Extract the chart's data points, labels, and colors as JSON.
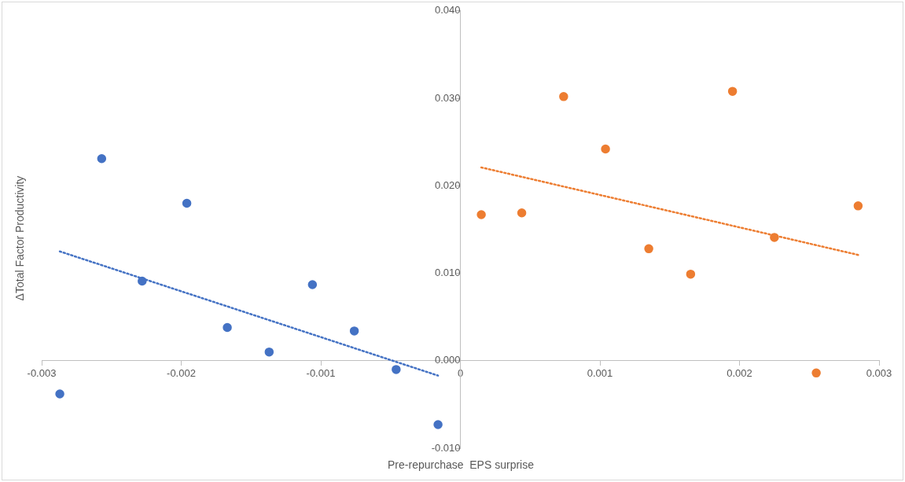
{
  "chart_data": {
    "type": "scatter",
    "xlabel": "Pre-repurchase  EPS surprise",
    "ylabel": "ΔTotal Factor Productivity",
    "xlim": [
      -0.003,
      0.003
    ],
    "ylim": [
      -0.01,
      0.04
    ],
    "xticks": [
      {
        "value": -0.003,
        "label": "-0.003"
      },
      {
        "value": -0.002,
        "label": "-0.002"
      },
      {
        "value": -0.001,
        "label": "-0.001"
      },
      {
        "value": 0,
        "label": "0"
      },
      {
        "value": 0.001,
        "label": "0.001"
      },
      {
        "value": 0.002,
        "label": "0.002"
      },
      {
        "value": 0.003,
        "label": "0.003"
      }
    ],
    "yticks": [
      {
        "value": -0.01,
        "label": "-0.010"
      },
      {
        "value": 0,
        "label": "0.000"
      },
      {
        "value": 0.01,
        "label": "0.010"
      },
      {
        "value": 0.02,
        "label": "0.020"
      },
      {
        "value": 0.03,
        "label": "0.030"
      },
      {
        "value": 0.04,
        "label": "0.040"
      }
    ],
    "grid": false,
    "legend": false,
    "marker": "circle",
    "series": [
      {
        "type": "scatter",
        "color": "#4472c4",
        "x": [
          -0.00287,
          -0.00257,
          -0.00228,
          -0.00196,
          -0.00167,
          -0.00137,
          -0.00106,
          -0.00076,
          -0.00046,
          -0.00016
        ],
        "values": [
          -0.0038,
          0.0231,
          0.0091,
          0.018,
          0.0038,
          0.001,
          0.0087,
          0.0034,
          -0.001,
          -0.0073
        ]
      },
      {
        "type": "scatter",
        "color": "#ed7d31",
        "x": [
          0.00015,
          0.00044,
          0.00074,
          0.00104,
          0.00135,
          0.00165,
          0.00195,
          0.00225,
          0.00255,
          0.00285
        ],
        "values": [
          0.0167,
          0.0169,
          0.0302,
          0.0242,
          0.0128,
          0.0099,
          0.0308,
          0.0141,
          -0.0014,
          0.0177
        ]
      },
      {
        "type": "line",
        "color": "#4472c4",
        "line_style": "dotted",
        "marker": "none",
        "x": [
          -0.00287,
          -0.00016
        ],
        "values": [
          0.0125,
          -0.0017
        ]
      },
      {
        "type": "line",
        "color": "#ed7d31",
        "line_style": "dotted",
        "marker": "none",
        "x": [
          0.00015,
          0.00285
        ],
        "values": [
          0.0221,
          0.0121
        ]
      }
    ]
  }
}
